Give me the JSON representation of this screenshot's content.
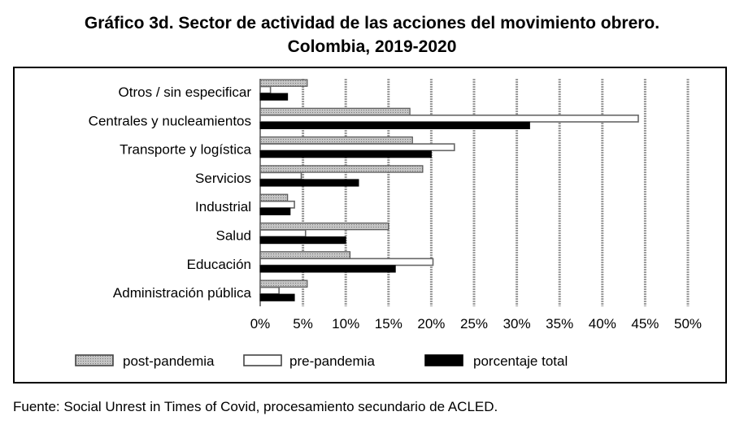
{
  "header": {
    "title_line1": "Gráfico 3d. Sector de actividad de las acciones del movimiento obrero.",
    "title_line2": "Colombia, 2019-2020"
  },
  "footer": {
    "source": "Fuente: Social Unrest in Times of Covid, procesamiento secundario de ACLED."
  },
  "colors": {
    "post": "#b8b8b8",
    "pre": "#ffffff",
    "total": "#000000",
    "grid": "#9a9a9a"
  },
  "chart_data": {
    "type": "bar",
    "orientation": "horizontal",
    "title": "Gráfico 3d. Sector de actividad de las acciones del movimiento obrero. Colombia, 2019-2020",
    "categories": [
      "Otros / sin especificar",
      "Centrales y nucleamientos",
      "Transporte y logística",
      "Servicios",
      "Industrial",
      "Salud",
      "Educación",
      "Administración pública"
    ],
    "series": [
      {
        "name": "post-pandemia",
        "values": [
          5.5,
          17.5,
          17.8,
          19.0,
          3.2,
          15.0,
          10.5,
          5.5
        ]
      },
      {
        "name": "pre-pandemia",
        "values": [
          1.2,
          44.2,
          22.7,
          4.8,
          4.0,
          5.3,
          20.2,
          2.2
        ]
      },
      {
        "name": "porcentaje total",
        "values": [
          3.2,
          31.5,
          20.0,
          11.5,
          3.5,
          10.0,
          15.8,
          4.0
        ]
      }
    ],
    "xlim": [
      0,
      50
    ],
    "xticks": [
      "0%",
      "5%",
      "10%",
      "15%",
      "20%",
      "25%",
      "30%",
      "35%",
      "40%",
      "45%",
      "50%"
    ],
    "grid": true,
    "legend_position": "bottom"
  }
}
